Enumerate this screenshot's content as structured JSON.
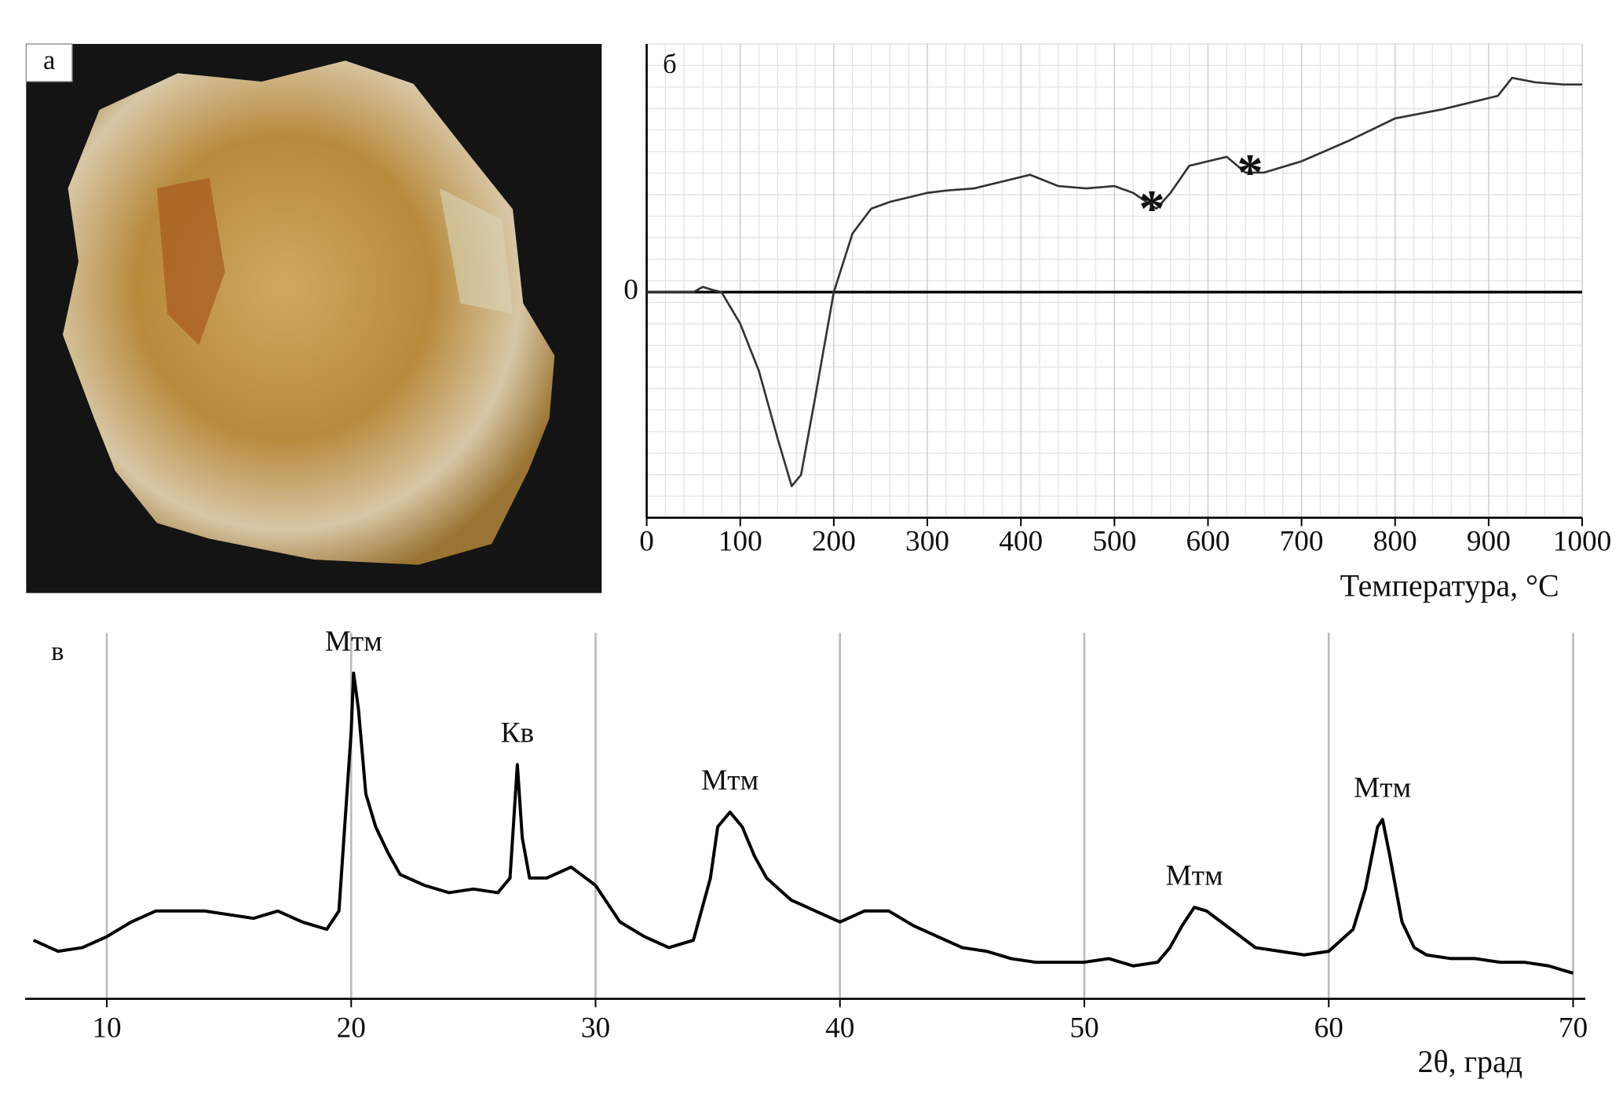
{
  "photo": {
    "panel_label": "а"
  },
  "chart_data": [
    {
      "type": "line",
      "panel_label": "б",
      "color": "#333333",
      "grid": true,
      "x": [
        0,
        50,
        60,
        70,
        80,
        100,
        120,
        140,
        155,
        165,
        180,
        200,
        220,
        240,
        260,
        280,
        300,
        320,
        350,
        380,
        410,
        440,
        470,
        500,
        520,
        545,
        560,
        580,
        600,
        620,
        640,
        660,
        700,
        750,
        800,
        850,
        900,
        910,
        925,
        950,
        980,
        1000
      ],
      "values": [
        0,
        0,
        0.23,
        0.1,
        0,
        -1.4,
        -3.5,
        -6.5,
        -8.6,
        -8.1,
        -4.7,
        0,
        2.6,
        3.7,
        4.0,
        4.2,
        4.4,
        4.5,
        4.6,
        4.9,
        5.2,
        4.7,
        4.6,
        4.7,
        4.4,
        3.7,
        4.4,
        5.6,
        5.8,
        6.0,
        5.3,
        5.3,
        5.8,
        6.7,
        7.7,
        8.1,
        8.6,
        8.7,
        9.5,
        9.3,
        9.2,
        9.2
      ],
      "xlim": [
        0,
        1000
      ],
      "xticks": [
        0,
        100,
        200,
        300,
        400,
        500,
        600,
        700,
        800,
        900,
        1000
      ],
      "ylim": [
        -10,
        11
      ],
      "yticks": [
        0
      ],
      "xlabel": "Температура, °C",
      "annotations": [
        {
          "text": "*",
          "x": 540,
          "y": 3.7
        },
        {
          "text": "*",
          "x": 645,
          "y": 5.3
        }
      ]
    },
    {
      "type": "line",
      "panel_label": "в",
      "color": "#000000",
      "grid": true,
      "x": [
        7,
        8,
        9,
        10,
        11,
        12,
        13,
        14,
        15,
        16,
        17,
        18,
        19,
        19.5,
        20,
        20.1,
        20.3,
        20.6,
        21,
        21.5,
        22,
        23,
        24,
        25,
        26,
        26.5,
        26.8,
        27,
        27.3,
        28,
        29,
        30,
        31,
        32,
        33,
        34,
        34.7,
        35,
        35.5,
        36,
        36.5,
        37,
        38,
        39,
        40,
        41,
        42,
        43,
        44,
        45,
        46,
        47,
        48,
        49,
        50,
        51,
        52,
        53,
        53.5,
        54,
        54.5,
        55,
        56,
        57,
        58,
        59,
        60,
        61,
        61.5,
        62,
        62.2,
        62.5,
        63,
        63.5,
        64,
        65,
        66,
        67,
        68,
        69,
        70
      ],
      "values": [
        16,
        13,
        14,
        17,
        21,
        24,
        24,
        24,
        23,
        22,
        24,
        21,
        19,
        24,
        73,
        89,
        79,
        56,
        47,
        40,
        34,
        31,
        29,
        30,
        29,
        33,
        64,
        44,
        33,
        33,
        36,
        31,
        21,
        17,
        14,
        16,
        33,
        47,
        51,
        47,
        39,
        33,
        27,
        24,
        21,
        24,
        24,
        20,
        17,
        14,
        13,
        11,
        10,
        10,
        10,
        11,
        9,
        10,
        14,
        20,
        25,
        24,
        19,
        14,
        13,
        12,
        13,
        19,
        30,
        47,
        49,
        39,
        21,
        14,
        12,
        11,
        11,
        10,
        10,
        9,
        7
      ],
      "xlim": [
        7,
        70.5
      ],
      "xticks": [
        10,
        20,
        30,
        40,
        50,
        60,
        70
      ],
      "ylim": [
        0,
        100
      ],
      "xlabel": "2θ, град",
      "annotations": [
        {
          "text": "Мтм",
          "x": 20.1,
          "y": 89
        },
        {
          "text": "Кв",
          "x": 26.8,
          "y": 64
        },
        {
          "text": "Мтм",
          "x": 35.5,
          "y": 51
        },
        {
          "text": "Мтм",
          "x": 54.5,
          "y": 25
        },
        {
          "text": "Мтм",
          "x": 62.2,
          "y": 49
        }
      ]
    }
  ]
}
